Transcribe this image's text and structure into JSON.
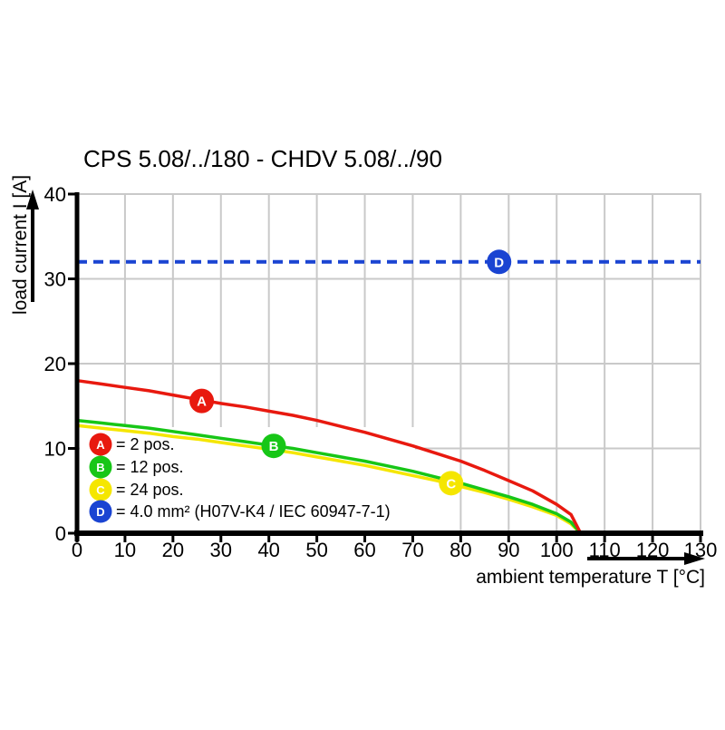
{
  "title": "CPS 5.08/../180 - CHDV 5.08/../90",
  "colors": {
    "series_a_red": "#e8190f",
    "series_b_green": "#17c617",
    "series_c_yellow": "#f5e600",
    "series_d_blue": "#1a44d2",
    "gridline": "#c9c9c9",
    "axis": "#000000",
    "background": "#ffffff"
  },
  "chart_data": {
    "type": "line",
    "title": "CPS 5.08/../180 - CHDV 5.08/../90",
    "xlabel": "ambient temperature T [°C]",
    "ylabel": "load current I [A]",
    "xlim": [
      0,
      130
    ],
    "ylim": [
      0,
      40
    ],
    "x_ticks": [
      0,
      10,
      20,
      30,
      40,
      50,
      60,
      70,
      80,
      90,
      100,
      110,
      120,
      130
    ],
    "y_ticks": [
      0,
      10,
      20,
      30,
      40
    ],
    "grid": true,
    "legend_position": "lower-left-inside",
    "series": [
      {
        "name": "A",
        "label": "= 2 pos.",
        "color": "#e8190f",
        "style": "solid",
        "marker": {
          "letter": "A",
          "x": 26,
          "y": 15.6
        },
        "points": [
          [
            0,
            18
          ],
          [
            5,
            17.6
          ],
          [
            10,
            17.2
          ],
          [
            15,
            16.8
          ],
          [
            20,
            16.3
          ],
          [
            25,
            15.8
          ],
          [
            30,
            15.3
          ],
          [
            35,
            14.9
          ],
          [
            40,
            14.4
          ],
          [
            45,
            13.9
          ],
          [
            50,
            13.3
          ],
          [
            55,
            12.6
          ],
          [
            60,
            11.9
          ],
          [
            65,
            11.1
          ],
          [
            70,
            10.3
          ],
          [
            75,
            9.4
          ],
          [
            80,
            8.5
          ],
          [
            85,
            7.4
          ],
          [
            90,
            6.2
          ],
          [
            95,
            5.0
          ],
          [
            100,
            3.4
          ],
          [
            103,
            2.2
          ],
          [
            105,
            0
          ]
        ]
      },
      {
        "name": "B",
        "label": "= 12 pos.",
        "color": "#17c617",
        "style": "solid",
        "marker": {
          "letter": "B",
          "x": 41,
          "y": 10.3
        },
        "points": [
          [
            0,
            13.3
          ],
          [
            5,
            13.0
          ],
          [
            10,
            12.7
          ],
          [
            15,
            12.4
          ],
          [
            20,
            12.0
          ],
          [
            25,
            11.6
          ],
          [
            30,
            11.2
          ],
          [
            35,
            10.8
          ],
          [
            40,
            10.4
          ],
          [
            45,
            10.0
          ],
          [
            50,
            9.5
          ],
          [
            55,
            9.0
          ],
          [
            60,
            8.5
          ],
          [
            65,
            7.9
          ],
          [
            70,
            7.3
          ],
          [
            75,
            6.6
          ],
          [
            80,
            5.9
          ],
          [
            85,
            5.1
          ],
          [
            90,
            4.3
          ],
          [
            95,
            3.4
          ],
          [
            100,
            2.3
          ],
          [
            103,
            1.3
          ],
          [
            105,
            0
          ]
        ]
      },
      {
        "name": "C",
        "label": "= 24 pos.",
        "color": "#f5e600",
        "style": "solid",
        "marker": {
          "letter": "C",
          "x": 78,
          "y": 5.9
        },
        "points": [
          [
            0,
            12.7
          ],
          [
            5,
            12.4
          ],
          [
            10,
            12.1
          ],
          [
            15,
            11.8
          ],
          [
            20,
            11.4
          ],
          [
            25,
            11.1
          ],
          [
            30,
            10.7
          ],
          [
            35,
            10.3
          ],
          [
            40,
            9.9
          ],
          [
            45,
            9.5
          ],
          [
            50,
            9.0
          ],
          [
            55,
            8.5
          ],
          [
            60,
            8.0
          ],
          [
            65,
            7.4
          ],
          [
            70,
            6.8
          ],
          [
            75,
            6.2
          ],
          [
            80,
            5.5
          ],
          [
            85,
            4.8
          ],
          [
            90,
            4.0
          ],
          [
            95,
            3.1
          ],
          [
            100,
            2.1
          ],
          [
            103,
            1.1
          ],
          [
            105,
            0
          ]
        ]
      },
      {
        "name": "D",
        "label": "= 4.0 mm² (H07V-K4 / IEC 60947-7-1)",
        "color": "#1a44d2",
        "style": "dashed",
        "marker": {
          "letter": "D",
          "x": 88,
          "y": 32
        },
        "points": [
          [
            0,
            32
          ],
          [
            130,
            32
          ]
        ]
      }
    ]
  }
}
